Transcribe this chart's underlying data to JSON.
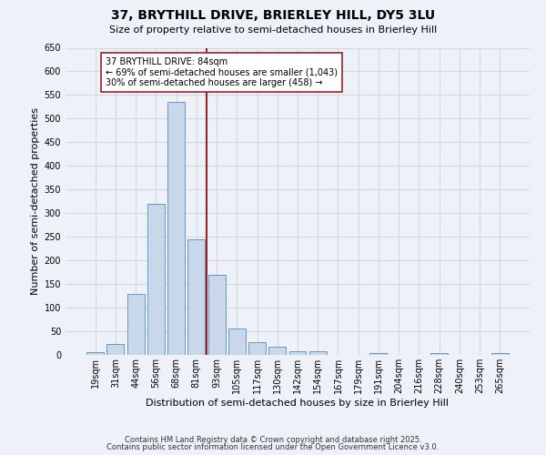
{
  "title1": "37, BRYTHILL DRIVE, BRIERLEY HILL, DY5 3LU",
  "title2": "Size of property relative to semi-detached houses in Brierley Hill",
  "xlabel": "Distribution of semi-detached houses by size in Brierley Hill",
  "ylabel": "Number of semi-detached properties",
  "categories": [
    "19sqm",
    "31sqm",
    "44sqm",
    "56sqm",
    "68sqm",
    "81sqm",
    "93sqm",
    "105sqm",
    "117sqm",
    "130sqm",
    "142sqm",
    "154sqm",
    "167sqm",
    "179sqm",
    "191sqm",
    "204sqm",
    "216sqm",
    "228sqm",
    "240sqm",
    "253sqm",
    "265sqm"
  ],
  "values": [
    5,
    23,
    130,
    320,
    535,
    245,
    170,
    55,
    27,
    18,
    8,
    8,
    0,
    0,
    3,
    0,
    0,
    3,
    0,
    0,
    3
  ],
  "bar_color": "#c8d8ea",
  "bar_edge_color": "#6699bb",
  "grid_color": "#d0d8e4",
  "bg_color": "#eef2f8",
  "fig_color": "#eef2f8",
  "vline_x": 5.5,
  "vline_color": "#992222",
  "annotation_text": "37 BRYTHILL DRIVE: 84sqm\n← 69% of semi-detached houses are smaller (1,043)\n30% of semi-detached houses are larger (458) →",
  "annotation_box_color": "#ffffff",
  "annotation_box_edge": "#992222",
  "ylim": [
    0,
    650
  ],
  "yticks": [
    0,
    50,
    100,
    150,
    200,
    250,
    300,
    350,
    400,
    450,
    500,
    550,
    600,
    650
  ],
  "footer1": "Contains HM Land Registry data © Crown copyright and database right 2025.",
  "footer2": "Contains public sector information licensed under the Open Government Licence v3.0.",
  "title1_fontsize": 10,
  "title2_fontsize": 8,
  "ylabel_fontsize": 8,
  "xlabel_fontsize": 8,
  "tick_fontsize": 7,
  "footer_fontsize": 6
}
